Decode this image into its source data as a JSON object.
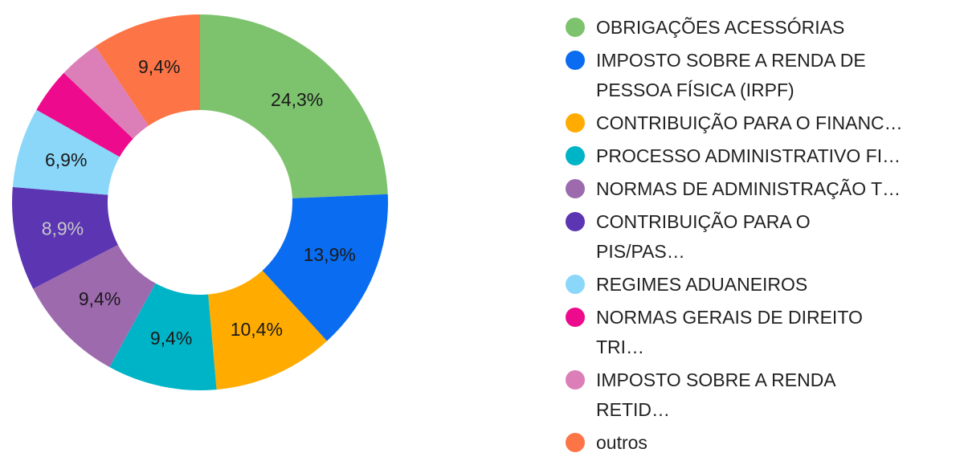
{
  "chart_data": {
    "type": "donut",
    "categories": [
      "OBRIGAÇÕES ACESSÓRIAS",
      "IMPOSTO SOBRE A RENDA DE PESSOA FÍSICA (IRPF)",
      "CONTRIBUIÇÃO PARA O FINANC…",
      "PROCESSO ADMINISTRATIVO FI…",
      "NORMAS DE ADMINISTRAÇÃO T…",
      "CONTRIBUIÇÃO PARA O PIS/PAS…",
      "REGIMES ADUANEIROS",
      "NORMAS GERAIS DE DIREITO TRI…",
      "IMPOSTO SOBRE A RENDA RETID…",
      "outros"
    ],
    "values": [
      24.3,
      13.9,
      10.4,
      9.4,
      9.4,
      8.9,
      6.9,
      3.9,
      3.5,
      9.4
    ],
    "value_labels": [
      "24,3%",
      "13,9%",
      "10,4%",
      "9,4%",
      "9,4%",
      "8,9%",
      "6,9%",
      null,
      null,
      "9,4%"
    ],
    "colors": [
      "#7dc36e",
      "#0a6cf0",
      "#ffab00",
      "#00b4c8",
      "#9d6aae",
      "#5b35b2",
      "#8bd7fa",
      "#ee0a8d",
      "#dc7eb8",
      "#fd7446"
    ]
  }
}
